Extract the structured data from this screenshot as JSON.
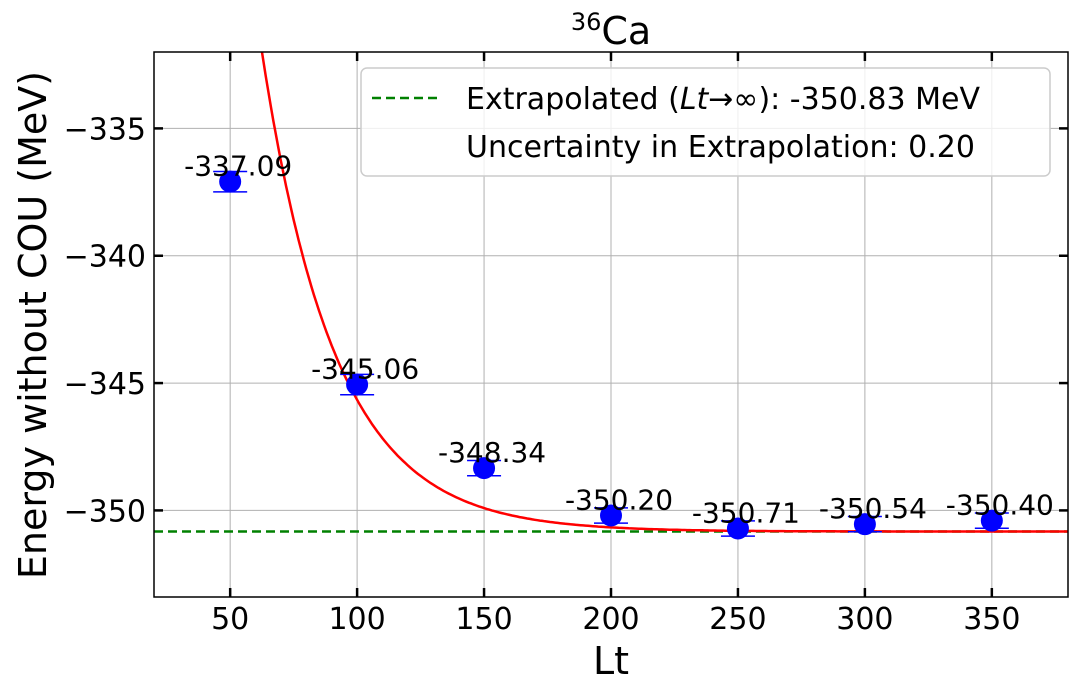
{
  "chart_data": {
    "type": "scatter",
    "title": "Ca",
    "title_superscript": "36",
    "xlabel": "Lt",
    "ylabel": "Energy without COU (MeV)",
    "xlim": [
      20,
      380
    ],
    "ylim": [
      -353.4,
      -332.0
    ],
    "xticks": [
      50,
      100,
      150,
      200,
      250,
      300,
      350
    ],
    "yticks": [
      -335,
      -340,
      -345,
      -350
    ],
    "xtick_labels": [
      "50",
      "100",
      "150",
      "200",
      "250",
      "300",
      "350"
    ],
    "ytick_labels": [
      "−335",
      "−340",
      "−345",
      "−350"
    ],
    "grid": true,
    "points": {
      "x": [
        50,
        100,
        150,
        200,
        250,
        300,
        350
      ],
      "y": [
        -337.09,
        -345.06,
        -348.34,
        -350.2,
        -350.71,
        -350.54,
        -350.4
      ],
      "labels": [
        "-337.09",
        "-345.06",
        "-348.34",
        "-350.20",
        "-350.71",
        "-350.54",
        "-350.40"
      ],
      "error": [
        0.4,
        0.4,
        0.3,
        0.3,
        0.3,
        0.3,
        0.3
      ],
      "color": "#0000ff"
    },
    "fit": {
      "asymptote": -350.83,
      "amplitude": 29.0,
      "decay": 29.0,
      "color": "#ff0000"
    },
    "extrapolated": {
      "y": -350.83,
      "color": "#008000"
    },
    "legend": {
      "location": "top-right",
      "extrapolated_prefix": "Extrapolated (",
      "extrapolated_math": "Lt",
      "extrapolated_arrow": "→∞",
      "extrapolated_suffix": "): -350.83 MeV",
      "uncertainty": "Uncertainty in Extrapolation: 0.20"
    }
  }
}
